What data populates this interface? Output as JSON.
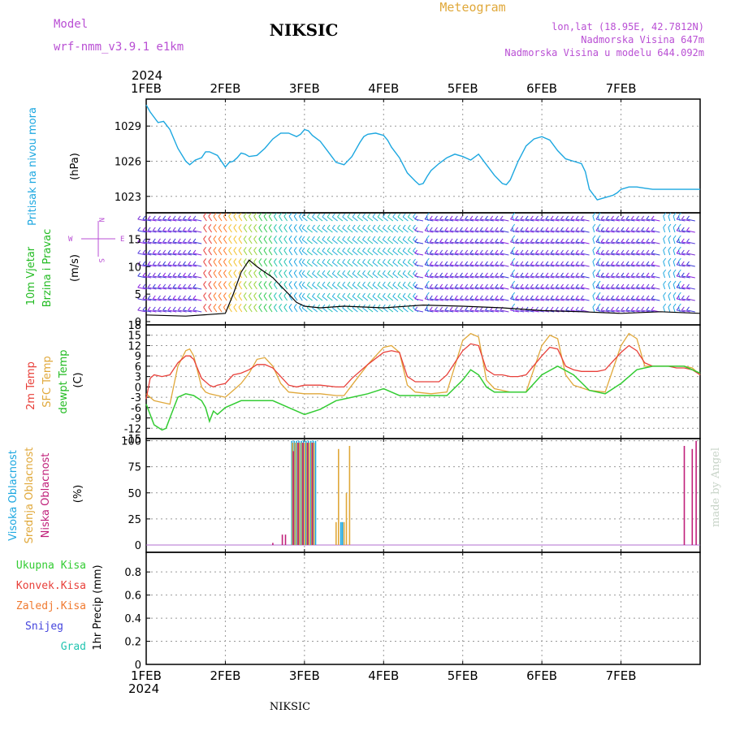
{
  "header": {
    "model_label": "Model",
    "model_name": "wrf-nmm_v3.9.1  e1km",
    "station": "NIKSIC",
    "product": "Meteogram",
    "coords": "lon,lat (18.95E, 42.7812N)",
    "elevation": "Nadmorska Visina 647m",
    "model_elevation": "Nadmorska Visina u modelu 644.092m",
    "footer_station": "NIKSIC",
    "credit": "made by Angel"
  },
  "colors": {
    "pressure": "#1ca7e0",
    "temp2m": "#e8403a",
    "sfc_temp": "#e0a83a",
    "dewpoint": "#33cc33",
    "high_cloud": "#1ca7e0",
    "mid_cloud": "#e0a83a",
    "low_cloud": "#c0207a",
    "purple_text": "#b94fd4",
    "wind_label": "#22bb22",
    "precip_total": "#33cc33",
    "precip_conv": "#e8403a",
    "precip_frozen": "#f07a30",
    "precip_snow": "#4444dd",
    "precip_grad": "#22c4b0"
  },
  "chart_data": [
    {
      "type": "line",
      "title": "",
      "ylabel": "Pritisak na nivou mora",
      "unit_label": "(hPa)",
      "year": "2024",
      "x_ticks": [
        "1FEB",
        "2FEB",
        "3FEB",
        "4FEB",
        "5FEB",
        "6FEB",
        "7FEB"
      ],
      "y_ticks": [
        1023,
        1026,
        1029
      ],
      "ylim": [
        1021.6,
        1031.3
      ],
      "grid": true,
      "series": [
        {
          "name": "Pritisak na nivou mora",
          "x": [
            0,
            0.05,
            0.15,
            0.22,
            0.3,
            0.4,
            0.5,
            0.55,
            0.62,
            0.7,
            0.75,
            0.8,
            0.9,
            1.0,
            1.05,
            1.1,
            1.15,
            1.2,
            1.25,
            1.3,
            1.4,
            1.5,
            1.6,
            1.7,
            1.8,
            1.9,
            1.95,
            2.0,
            2.05,
            2.1,
            2.2,
            2.3,
            2.4,
            2.5,
            2.6,
            2.7,
            2.75,
            2.8,
            2.9,
            3.0,
            3.05,
            3.1,
            3.2,
            3.3,
            3.4,
            3.45,
            3.5,
            3.55,
            3.6,
            3.7,
            3.8,
            3.9,
            4.0,
            4.1,
            4.2,
            4.3,
            4.4,
            4.5,
            4.55,
            4.6,
            4.7,
            4.8,
            4.9,
            5.0,
            5.1,
            5.2,
            5.3,
            5.4,
            5.5,
            5.55,
            5.6,
            5.7,
            5.8,
            5.9,
            5.95,
            6.0,
            6.1,
            6.2,
            6.3,
            6.4,
            6.45,
            6.5,
            6.6,
            6.7,
            6.8,
            6.9,
            7.0
          ],
          "values": [
            1030.8,
            1030.2,
            1029.3,
            1029.4,
            1028.7,
            1027.1,
            1026.0,
            1025.7,
            1026.1,
            1026.3,
            1026.8,
            1026.8,
            1026.5,
            1025.5,
            1025.9,
            1026.0,
            1026.3,
            1026.7,
            1026.6,
            1026.4,
            1026.5,
            1027.1,
            1027.9,
            1028.4,
            1028.4,
            1028.1,
            1028.3,
            1028.7,
            1028.6,
            1028.2,
            1027.7,
            1026.8,
            1025.9,
            1025.7,
            1026.4,
            1027.6,
            1028.1,
            1028.3,
            1028.4,
            1028.2,
            1027.8,
            1027.2,
            1026.3,
            1025.0,
            1024.3,
            1024.0,
            1024.1,
            1024.7,
            1025.2,
            1025.8,
            1026.3,
            1026.6,
            1026.4,
            1026.1,
            1026.6,
            1025.7,
            1024.8,
            1024.1,
            1024.0,
            1024.4,
            1026.0,
            1027.3,
            1027.9,
            1028.1,
            1027.8,
            1026.9,
            1026.2,
            1026.0,
            1025.8,
            1025.1,
            1023.6,
            1022.7,
            1022.9,
            1023.1,
            1023.3,
            1023.6,
            1023.8,
            1023.8,
            1023.7,
            1023.6,
            1023.6,
            1023.6,
            1023.6,
            1023.6,
            1023.6,
            1023.6,
            1023.6
          ]
        }
      ]
    },
    {
      "type": "line",
      "title": "",
      "ylabel": "10m Vjetar Brzina i Pravac",
      "unit_label": "(m/s)",
      "compass": {
        "n": "N",
        "e": "E",
        "w": "W",
        "s": "S"
      },
      "y_ticks": [
        0,
        5,
        10,
        15
      ],
      "ylim": [
        -0.6,
        19.8
      ],
      "grid": false,
      "series": [
        {
          "name": "Brzina",
          "x": [
            0,
            0.5,
            1.0,
            1.1,
            1.2,
            1.3,
            1.4,
            1.5,
            1.6,
            1.7,
            1.8,
            1.9,
            2.0,
            2.2,
            2.5,
            3.0,
            3.5,
            4.0,
            4.5,
            5.0,
            5.5,
            6.0,
            6.5,
            7.0
          ],
          "values": [
            1.2,
            1.0,
            1.5,
            5.0,
            9.0,
            11.2,
            10.0,
            9.0,
            8.0,
            6.5,
            5.0,
            3.5,
            2.8,
            2.5,
            2.8,
            2.5,
            3.0,
            2.8,
            2.5,
            2.0,
            1.8,
            1.5,
            1.8,
            1.5
          ]
        }
      ]
    },
    {
      "type": "line",
      "title": "",
      "ylabels": [
        "2m Temp",
        "SFC Temp",
        "dewpt Temp"
      ],
      "unit_label": "(C)",
      "y_ticks": [
        -15,
        -12,
        -9,
        -6,
        -3,
        0,
        3,
        6,
        9,
        12,
        15,
        18
      ],
      "ylim": [
        -15,
        18
      ],
      "grid": true,
      "series": [
        {
          "name": "2m Temp",
          "x": [
            0,
            0.05,
            0.1,
            0.2,
            0.3,
            0.4,
            0.5,
            0.55,
            0.6,
            0.7,
            0.8,
            0.85,
            0.9,
            1.0,
            1.1,
            1.2,
            1.3,
            1.4,
            1.5,
            1.6,
            1.7,
            1.8,
            1.9,
            2.0,
            2.2,
            2.4,
            2.5,
            2.6,
            2.8,
            3.0,
            3.1,
            3.2,
            3.3,
            3.4,
            3.5,
            3.6,
            3.7,
            3.8,
            4.0,
            4.1,
            4.2,
            4.3,
            4.4,
            4.5,
            4.6,
            4.7,
            4.8,
            5.0,
            5.1,
            5.2,
            5.3,
            5.4,
            5.5,
            5.6,
            5.7,
            5.8,
            6.0,
            6.1,
            6.2,
            6.3,
            6.4,
            6.5,
            6.6,
            6.7,
            6.8,
            6.9,
            7.0
          ],
          "values": [
            -3.5,
            2.5,
            3.5,
            3.0,
            3.5,
            7.0,
            9.0,
            9.0,
            8.0,
            2.5,
            0.5,
            0.0,
            0.5,
            1.0,
            3.5,
            4.0,
            5.0,
            6.5,
            6.5,
            5.5,
            3.0,
            0.5,
            0.0,
            0.5,
            0.5,
            0.0,
            0.0,
            2.5,
            6.5,
            10.0,
            10.5,
            10.0,
            3.0,
            1.5,
            1.5,
            1.5,
            1.5,
            3.5,
            10.5,
            12.5,
            12.0,
            5.0,
            3.5,
            3.5,
            3.0,
            3.0,
            3.5,
            9.0,
            11.5,
            11.0,
            6.0,
            5.0,
            4.5,
            4.5,
            4.5,
            5.0,
            10.0,
            12.0,
            10.5,
            7.0,
            6.0,
            6.0,
            6.0,
            5.5,
            5.5,
            5.0,
            3.5
          ]
        },
        {
          "name": "SFC Temp",
          "x": [
            0,
            0.05,
            0.1,
            0.2,
            0.3,
            0.4,
            0.5,
            0.55,
            0.6,
            0.7,
            0.75,
            0.8,
            0.9,
            1.0,
            1.1,
            1.2,
            1.3,
            1.4,
            1.5,
            1.6,
            1.7,
            1.8,
            2.0,
            2.2,
            2.4,
            2.5,
            2.6,
            2.8,
            3.0,
            3.1,
            3.2,
            3.3,
            3.4,
            3.6,
            3.8,
            4.0,
            4.1,
            4.2,
            4.3,
            4.4,
            4.6,
            4.8,
            5.0,
            5.1,
            5.2,
            5.3,
            5.4,
            5.6,
            5.8,
            6.0,
            6.1,
            6.2,
            6.3,
            6.4,
            6.6,
            6.8,
            6.9,
            7.0
          ],
          "values": [
            -2.0,
            -3.0,
            -4.0,
            -4.5,
            -5.0,
            6.0,
            10.5,
            11.0,
            9.0,
            0.0,
            -1.5,
            -2.0,
            -2.5,
            -3.0,
            -1.0,
            1.0,
            4.0,
            8.0,
            8.5,
            6.0,
            1.0,
            -1.5,
            -2.0,
            -2.0,
            -2.5,
            -2.5,
            0.5,
            6.5,
            11.5,
            12.0,
            10.0,
            0.5,
            -1.5,
            -2.0,
            -1.5,
            13.5,
            15.5,
            14.5,
            2.0,
            -0.5,
            -1.5,
            -1.5,
            12.0,
            15.0,
            14.0,
            3.5,
            0.5,
            -1.0,
            -1.5,
            12.0,
            15.5,
            14.0,
            6.0,
            6.0,
            6.0,
            6.0,
            5.5,
            3.5
          ]
        },
        {
          "name": "dewpt Temp",
          "x": [
            0,
            0.1,
            0.2,
            0.25,
            0.3,
            0.4,
            0.5,
            0.6,
            0.7,
            0.75,
            0.8,
            0.85,
            0.9,
            1.0,
            1.2,
            1.4,
            1.6,
            1.8,
            2.0,
            2.2,
            2.4,
            2.6,
            2.8,
            3.0,
            3.2,
            3.4,
            3.6,
            3.8,
            4.0,
            4.1,
            4.2,
            4.3,
            4.4,
            4.6,
            4.8,
            5.0,
            5.2,
            5.4,
            5.6,
            5.8,
            6.0,
            6.2,
            6.4,
            6.6,
            6.8,
            7.0
          ],
          "values": [
            -5.0,
            -11.0,
            -12.5,
            -12.0,
            -9.0,
            -3.0,
            -2.0,
            -2.5,
            -4.0,
            -6.0,
            -10.0,
            -7.0,
            -8.0,
            -6.0,
            -4.0,
            -4.0,
            -4.0,
            -6.0,
            -8.0,
            -6.5,
            -4.0,
            -3.0,
            -2.0,
            -0.5,
            -2.5,
            -2.5,
            -2.5,
            -2.5,
            2.0,
            5.0,
            3.5,
            0.0,
            -1.5,
            -1.5,
            -1.5,
            3.5,
            6.0,
            3.5,
            -1.0,
            -2.0,
            1.0,
            5.0,
            6.0,
            6.0,
            6.0,
            4.0
          ]
        }
      ]
    },
    {
      "type": "bar",
      "title": "",
      "ylabels": [
        "Visoka Oblacnost",
        "Srednja Oblacnost",
        "Niska Oblacnost"
      ],
      "unit_label": "(%)",
      "y_ticks": [
        0,
        25,
        50,
        75,
        100
      ],
      "ylim": [
        -7,
        102
      ],
      "grid": true,
      "series": [
        {
          "name": "Visoka Oblacnost",
          "x": [
            1.84,
            1.87,
            1.9,
            1.93,
            1.96,
            1.99,
            2.02,
            2.05,
            2.08,
            2.11,
            2.14,
            2.46,
            2.48
          ],
          "values": [
            100,
            100,
            100,
            100,
            100,
            100,
            100,
            100,
            100,
            100,
            100,
            22,
            22
          ]
        },
        {
          "name": "Srednja Oblacnost",
          "x": [
            1.85,
            1.88,
            1.91,
            1.94,
            1.97,
            2.0,
            2.03,
            2.06,
            2.09,
            2.12,
            2.4,
            2.43,
            2.5,
            2.53,
            2.57
          ],
          "values": [
            98,
            98,
            98,
            98,
            98,
            98,
            98,
            98,
            98,
            98,
            22,
            92,
            22,
            50,
            95
          ]
        },
        {
          "name": "Niska Oblacnost",
          "x": [
            1.6,
            1.72,
            1.76,
            1.86,
            1.92,
            1.98,
            2.04,
            2.1,
            6.8,
            6.9,
            6.95
          ],
          "values": [
            2,
            10,
            10,
            90,
            98,
            98,
            98,
            98,
            95,
            92,
            100
          ]
        }
      ]
    },
    {
      "type": "bar",
      "title": "",
      "ylabel": "1hr Precip (mm)",
      "y_ticks": [
        0,
        0.2,
        0.4,
        0.6,
        0.8
      ],
      "ylim": [
        0,
        0.97
      ],
      "grid": true,
      "legend": [
        "Ukupna Kisa",
        "Konvek.Kisa",
        "Zaledj.Kisa",
        "Snijeg",
        "Grad"
      ],
      "series": [
        {
          "name": "Ukupna Kisa",
          "x": [],
          "values": []
        },
        {
          "name": "Konvek.Kisa",
          "x": [],
          "values": []
        },
        {
          "name": "Zaledj.Kisa",
          "x": [],
          "values": []
        },
        {
          "name": "Snijeg",
          "x": [],
          "values": []
        },
        {
          "name": "Grad",
          "x": [],
          "values": []
        }
      ]
    }
  ]
}
